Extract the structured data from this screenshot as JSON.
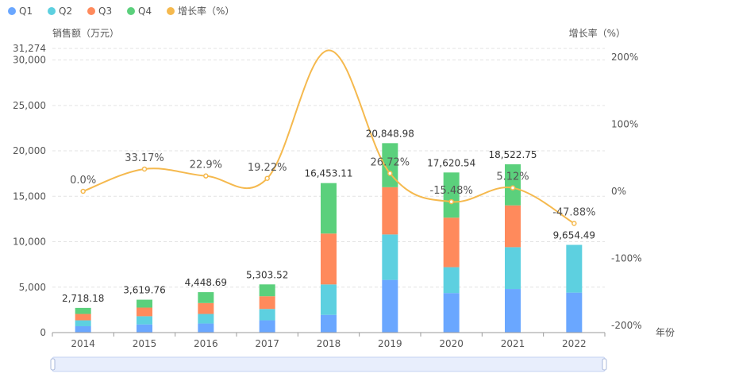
{
  "chart_data": {
    "type": "bar",
    "stacked": true,
    "categories": [
      "2014",
      "2015",
      "2016",
      "2017",
      "2018",
      "2019",
      "2020",
      "2021",
      "2022"
    ],
    "series": [
      {
        "name": "Q1",
        "color": "#6aa7ff",
        "values": [
          700,
          900,
          1000,
          1350,
          1950,
          5800,
          4350,
          4800,
          4400
        ]
      },
      {
        "name": "Q2",
        "color": "#5dd0e0",
        "values": [
          650,
          900,
          1050,
          1250,
          3350,
          5000,
          2850,
          4600,
          5254.49
        ]
      },
      {
        "name": "Q3",
        "color": "#ff8a5c",
        "values": [
          700,
          950,
          1200,
          1400,
          5600,
          5200,
          5450,
          4600,
          0
        ]
      },
      {
        "name": "Q4",
        "color": "#5bd07c",
        "values": [
          668.18,
          869.76,
          1198.69,
          1303.52,
          5553.11,
          4848.98,
          4970.54,
          4522.75,
          0
        ]
      }
    ],
    "totals": [
      "2,718.18",
      "3,619.76",
      "4,448.69",
      "5,303.52",
      "16,453.11",
      "20,848.98",
      "17,620.54",
      "18,522.75",
      "9,654.49"
    ],
    "growth": {
      "name": "增长率（%）",
      "color": "#f5b94e",
      "values": [
        0.0,
        33.17,
        22.9,
        19.22,
        210.23,
        26.72,
        -15.48,
        5.12,
        -47.88
      ],
      "labels": [
        "0.0%",
        "33.17%",
        "22.9%",
        "19.22%",
        "",
        "26.72%",
        "-15.48%",
        "5.12%",
        "-47.88%"
      ]
    },
    "y_left": {
      "label": "销售额（万元）",
      "range": [
        0,
        31274
      ],
      "ticks": [
        0,
        5000,
        10000,
        15000,
        20000,
        25000,
        30000,
        31274
      ],
      "tick_labels": [
        "0",
        "5,000",
        "10,000",
        "15,000",
        "20,000",
        "25,000",
        "30,000",
        "31,274"
      ]
    },
    "y_right": {
      "label": "增长率（%）",
      "range": [
        -200,
        200
      ],
      "ticks": [
        -200,
        -100,
        0,
        100,
        200
      ],
      "tick_labels": [
        "-200%",
        "-100%",
        "0%",
        "100%",
        "200%"
      ]
    },
    "x_label": "年份",
    "grid": true,
    "legend_position": "top-left",
    "legend": [
      {
        "name": "Q1",
        "color": "#6aa7ff"
      },
      {
        "name": "Q2",
        "color": "#5dd0e0"
      },
      {
        "name": "Q3",
        "color": "#ff8a5c"
      },
      {
        "name": "Q4",
        "color": "#5bd07c"
      },
      {
        "name": "增长率（%）",
        "color": "#f5b94e"
      }
    ]
  }
}
